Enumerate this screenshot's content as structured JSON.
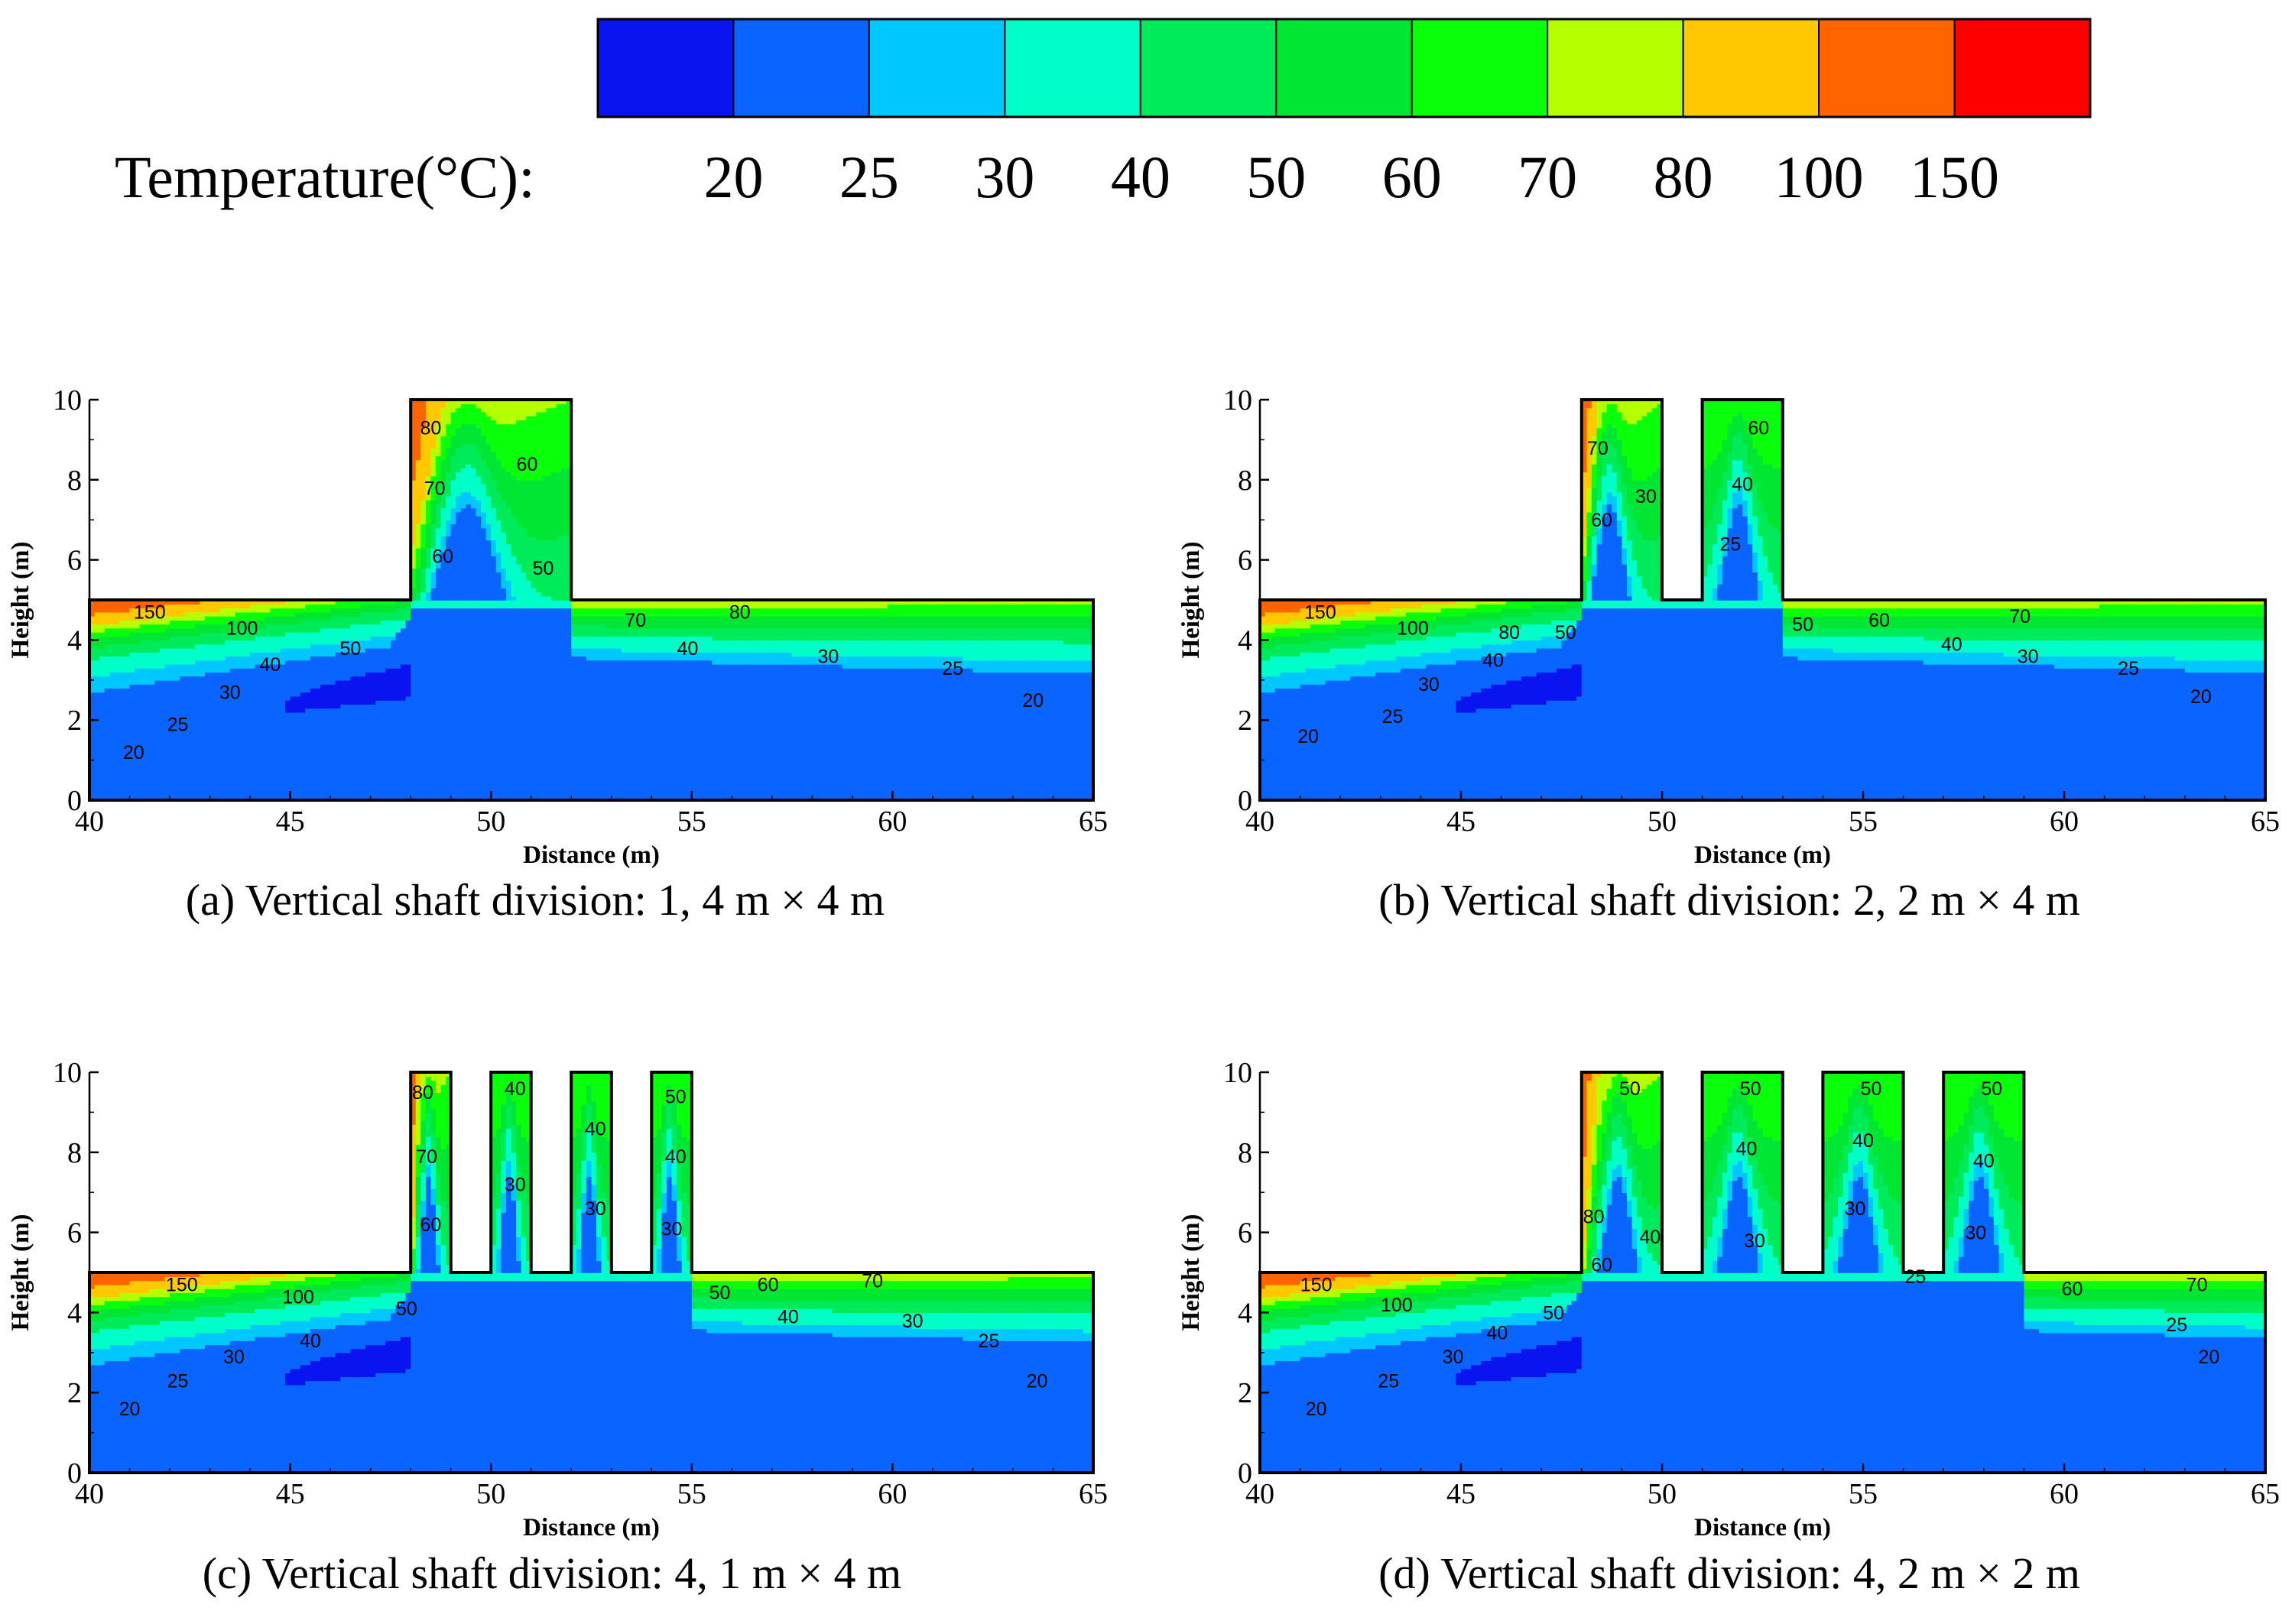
{
  "colorbar": {
    "title": "Temperature(°C):",
    "levels": [
      "20",
      "25",
      "30",
      "40",
      "50",
      "60",
      "70",
      "80",
      "100",
      "150"
    ],
    "colors": [
      "#0a14f0",
      "#0a64ff",
      "#00c8ff",
      "#00ffc8",
      "#00eb5a",
      "#00e632",
      "#0aff0a",
      "#b4ff00",
      "#ffc800",
      "#ff6400",
      "#ff0000"
    ]
  },
  "chart_data": [
    {
      "type": "contour",
      "id": "a",
      "caption": "(a) Vertical shaft division: 1, 4 m × 4 m",
      "xlabel": "Distance (m)",
      "ylabel": "Height (m)",
      "xlim": [
        40,
        65
      ],
      "ylim": [
        0,
        10
      ],
      "xticks": [
        "40",
        "45",
        "50",
        "55",
        "60",
        "65"
      ],
      "yticks": [
        "0",
        "2",
        "4",
        "6",
        "8",
        "10"
      ],
      "tunnel_height": 5,
      "shafts": [
        [
          48,
          52
        ]
      ],
      "shaft_top": 10,
      "labels": [
        {
          "x": 41.5,
          "y": 4.7,
          "t": "150"
        },
        {
          "x": 43.8,
          "y": 4.3,
          "t": "100"
        },
        {
          "x": 46.5,
          "y": 3.8,
          "t": "50"
        },
        {
          "x": 44.5,
          "y": 3.4,
          "t": "40"
        },
        {
          "x": 43.5,
          "y": 2.7,
          "t": "30"
        },
        {
          "x": 42.2,
          "y": 1.9,
          "t": "25"
        },
        {
          "x": 41.1,
          "y": 1.2,
          "t": "20"
        },
        {
          "x": 48.5,
          "y": 9.3,
          "t": "80"
        },
        {
          "x": 48.6,
          "y": 7.8,
          "t": "70"
        },
        {
          "x": 48.8,
          "y": 6.1,
          "t": "60"
        },
        {
          "x": 50.9,
          "y": 8.4,
          "t": "60"
        },
        {
          "x": 51.3,
          "y": 5.8,
          "t": "50"
        },
        {
          "x": 53.6,
          "y": 4.5,
          "t": "70"
        },
        {
          "x": 56.2,
          "y": 4.7,
          "t": "80"
        },
        {
          "x": 54.9,
          "y": 3.8,
          "t": "40"
        },
        {
          "x": 58.4,
          "y": 3.6,
          "t": "30"
        },
        {
          "x": 61.5,
          "y": 3.3,
          "t": "25"
        },
        {
          "x": 63.5,
          "y": 2.5,
          "t": "20"
        }
      ]
    },
    {
      "type": "contour",
      "id": "b",
      "caption": "(b) Vertical shaft division: 2, 2 m × 4 m",
      "xlabel": "Distance (m)",
      "ylabel": "Height (m)",
      "xlim": [
        40,
        65
      ],
      "ylim": [
        0,
        10
      ],
      "xticks": [
        "40",
        "45",
        "50",
        "55",
        "60",
        "65"
      ],
      "yticks": [
        "0",
        "2",
        "4",
        "6",
        "8",
        "10"
      ],
      "tunnel_height": 5,
      "shafts": [
        [
          48,
          50
        ],
        [
          51,
          53
        ]
      ],
      "shaft_top": 10,
      "labels": [
        {
          "x": 41.5,
          "y": 4.7,
          "t": "150"
        },
        {
          "x": 43.8,
          "y": 4.3,
          "t": "100"
        },
        {
          "x": 46.2,
          "y": 4.2,
          "t": "80"
        },
        {
          "x": 47.6,
          "y": 4.2,
          "t": "50"
        },
        {
          "x": 45.8,
          "y": 3.5,
          "t": "40"
        },
        {
          "x": 44.2,
          "y": 2.9,
          "t": "30"
        },
        {
          "x": 43.3,
          "y": 2.1,
          "t": "25"
        },
        {
          "x": 41.2,
          "y": 1.6,
          "t": "20"
        },
        {
          "x": 48.4,
          "y": 8.8,
          "t": "70"
        },
        {
          "x": 48.5,
          "y": 7.0,
          "t": "60"
        },
        {
          "x": 49.6,
          "y": 7.6,
          "t": "30"
        },
        {
          "x": 52.4,
          "y": 9.3,
          "t": "60"
        },
        {
          "x": 52.0,
          "y": 7.9,
          "t": "40"
        },
        {
          "x": 51.7,
          "y": 6.4,
          "t": "25"
        },
        {
          "x": 53.5,
          "y": 4.4,
          "t": "50"
        },
        {
          "x": 55.4,
          "y": 4.5,
          "t": "60"
        },
        {
          "x": 57.2,
          "y": 3.9,
          "t": "40"
        },
        {
          "x": 58.9,
          "y": 4.6,
          "t": "70"
        },
        {
          "x": 59.1,
          "y": 3.6,
          "t": "30"
        },
        {
          "x": 61.6,
          "y": 3.3,
          "t": "25"
        },
        {
          "x": 63.4,
          "y": 2.6,
          "t": "20"
        }
      ]
    },
    {
      "type": "contour",
      "id": "c",
      "caption": "(c) Vertical shaft division: 4, 1 m × 4 m",
      "xlabel": "Distance (m)",
      "ylabel": "Height (m)",
      "xlim": [
        40,
        65
      ],
      "ylim": [
        0,
        10
      ],
      "xticks": [
        "40",
        "45",
        "50",
        "55",
        "60",
        "65"
      ],
      "yticks": [
        "0",
        "2",
        "4",
        "6",
        "8",
        "10"
      ],
      "tunnel_height": 5,
      "shafts": [
        [
          48,
          49
        ],
        [
          50,
          51
        ],
        [
          52,
          53
        ],
        [
          54,
          55
        ]
      ],
      "shaft_top": 10,
      "labels": [
        {
          "x": 42.3,
          "y": 4.7,
          "t": "150"
        },
        {
          "x": 45.2,
          "y": 4.4,
          "t": "100"
        },
        {
          "x": 47.9,
          "y": 4.1,
          "t": "50"
        },
        {
          "x": 45.5,
          "y": 3.3,
          "t": "40"
        },
        {
          "x": 43.6,
          "y": 2.9,
          "t": "30"
        },
        {
          "x": 42.2,
          "y": 2.3,
          "t": "25"
        },
        {
          "x": 41.0,
          "y": 1.6,
          "t": "20"
        },
        {
          "x": 48.3,
          "y": 9.5,
          "t": "80"
        },
        {
          "x": 48.4,
          "y": 7.9,
          "t": "70"
        },
        {
          "x": 48.5,
          "y": 6.2,
          "t": "60"
        },
        {
          "x": 50.6,
          "y": 9.6,
          "t": "40"
        },
        {
          "x": 50.6,
          "y": 7.2,
          "t": "30"
        },
        {
          "x": 52.6,
          "y": 8.6,
          "t": "40"
        },
        {
          "x": 52.6,
          "y": 6.6,
          "t": "30"
        },
        {
          "x": 54.6,
          "y": 9.4,
          "t": "50"
        },
        {
          "x": 54.6,
          "y": 7.9,
          "t": "40"
        },
        {
          "x": 54.5,
          "y": 6.1,
          "t": "30"
        },
        {
          "x": 55.7,
          "y": 4.5,
          "t": "50"
        },
        {
          "x": 56.9,
          "y": 4.7,
          "t": "60"
        },
        {
          "x": 59.5,
          "y": 4.8,
          "t": "70"
        },
        {
          "x": 57.4,
          "y": 3.9,
          "t": "40"
        },
        {
          "x": 60.5,
          "y": 3.8,
          "t": "30"
        },
        {
          "x": 62.4,
          "y": 3.3,
          "t": "25"
        },
        {
          "x": 63.6,
          "y": 2.3,
          "t": "20"
        }
      ]
    },
    {
      "type": "contour",
      "id": "d",
      "caption": "(d) Vertical shaft division: 4, 2 m × 2 m",
      "xlabel": "Distance (m)",
      "ylabel": "Height (m)",
      "xlim": [
        40,
        65
      ],
      "ylim": [
        0,
        10
      ],
      "xticks": [
        "40",
        "45",
        "50",
        "55",
        "60",
        "65"
      ],
      "yticks": [
        "0",
        "2",
        "4",
        "6",
        "8",
        "10"
      ],
      "tunnel_height": 5,
      "shafts": [
        [
          48,
          50
        ],
        [
          51,
          53
        ],
        [
          54,
          56
        ],
        [
          57,
          59
        ]
      ],
      "shaft_top": 10,
      "labels": [
        {
          "x": 41.4,
          "y": 4.7,
          "t": "150"
        },
        {
          "x": 43.4,
          "y": 4.2,
          "t": "100"
        },
        {
          "x": 47.3,
          "y": 4.0,
          "t": "50"
        },
        {
          "x": 45.9,
          "y": 3.5,
          "t": "40"
        },
        {
          "x": 44.8,
          "y": 2.9,
          "t": "30"
        },
        {
          "x": 43.2,
          "y": 2.3,
          "t": "25"
        },
        {
          "x": 41.4,
          "y": 1.6,
          "t": "20"
        },
        {
          "x": 49.2,
          "y": 9.6,
          "t": "50"
        },
        {
          "x": 48.3,
          "y": 6.4,
          "t": "80"
        },
        {
          "x": 48.5,
          "y": 5.2,
          "t": "60"
        },
        {
          "x": 49.7,
          "y": 5.9,
          "t": "40"
        },
        {
          "x": 52.2,
          "y": 9.6,
          "t": "50"
        },
        {
          "x": 52.1,
          "y": 8.1,
          "t": "40"
        },
        {
          "x": 52.3,
          "y": 5.8,
          "t": "30"
        },
        {
          "x": 55.2,
          "y": 9.6,
          "t": "50"
        },
        {
          "x": 55.0,
          "y": 8.3,
          "t": "40"
        },
        {
          "x": 54.8,
          "y": 6.6,
          "t": "30"
        },
        {
          "x": 56.3,
          "y": 4.9,
          "t": "25"
        },
        {
          "x": 58.2,
          "y": 9.6,
          "t": "50"
        },
        {
          "x": 58.0,
          "y": 7.8,
          "t": "40"
        },
        {
          "x": 57.8,
          "y": 6.0,
          "t": "30"
        },
        {
          "x": 60.2,
          "y": 4.6,
          "t": "60"
        },
        {
          "x": 63.3,
          "y": 4.7,
          "t": "70"
        },
        {
          "x": 62.8,
          "y": 3.7,
          "t": "25"
        },
        {
          "x": 63.6,
          "y": 2.9,
          "t": "20"
        }
      ]
    }
  ]
}
